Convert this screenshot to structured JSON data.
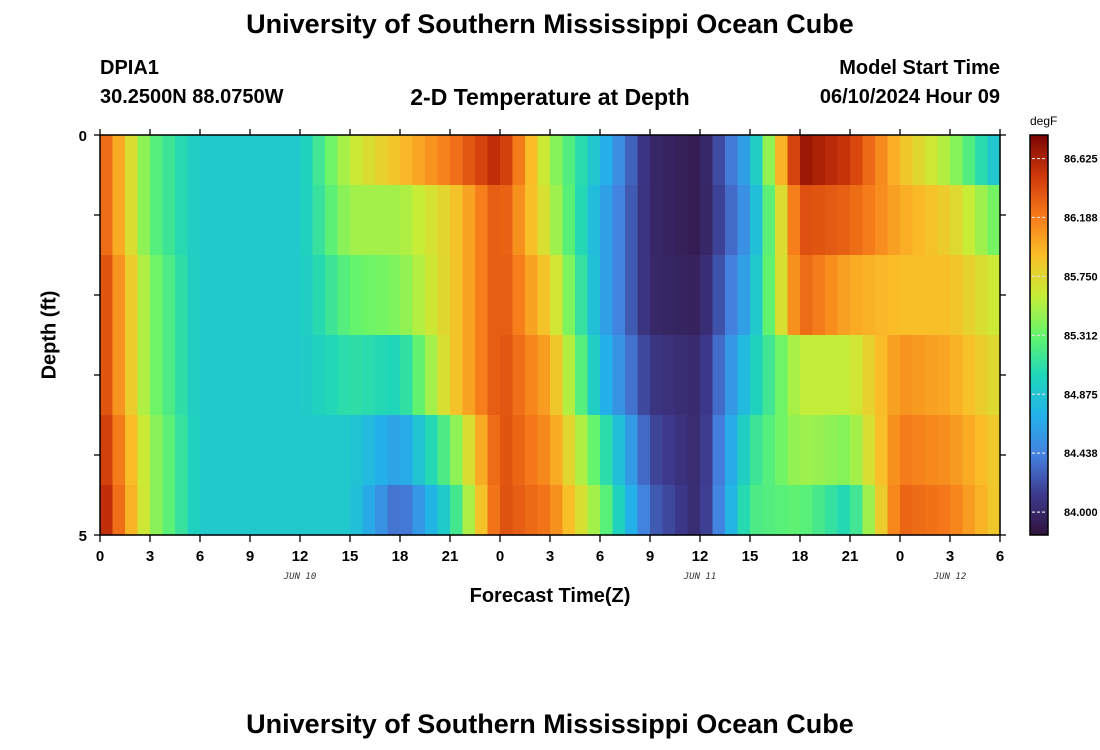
{
  "header": {
    "title": "University of Southern Mississippi Ocean Cube",
    "station_id": "DPIA1",
    "station_coords": "30.2500N  88.0750W",
    "model_label": "Model Start Time",
    "model_time": "06/10/2024 Hour 09",
    "subtitle": "2-D Temperature at Depth"
  },
  "footer": {
    "title": "University of Southern Mississippi Ocean Cube"
  },
  "chart_data": {
    "type": "heatmap",
    "title": "2-D Temperature at Depth",
    "xlabel": "Forecast Time(Z)",
    "ylabel": "Depth (ft)",
    "x_tick_labels": [
      "0",
      "3",
      "6",
      "9",
      "12",
      "15",
      "18",
      "21",
      "0",
      "3",
      "6",
      "9",
      "12",
      "15",
      "18",
      "21",
      "0",
      "3",
      "6"
    ],
    "x_date_labels": [
      {
        "hour_index": 12,
        "text": "JUN 10"
      },
      {
        "hour_index": 36,
        "text": "JUN 11"
      },
      {
        "hour_index": 51,
        "text": "JUN 12"
      }
    ],
    "x_range_hours": [
      0,
      54
    ],
    "y_tick_labels": [
      "0",
      "5"
    ],
    "ylim": [
      0,
      5
    ],
    "y_inverted": true,
    "depth_levels_ft": [
      0.25,
      1.0,
      2.0,
      3.0,
      4.0,
      4.75
    ],
    "colorbar": {
      "unit": "degF",
      "tick_labels": [
        "86.625",
        "86.188",
        "85.750",
        "85.312",
        "84.875",
        "84.438",
        "84.000"
      ],
      "range": [
        83.83,
        86.8
      ]
    },
    "time_hours": [
      0,
      3,
      6,
      9,
      12,
      15,
      18,
      21,
      24,
      27,
      30,
      33,
      36,
      39,
      42,
      45,
      48,
      51,
      54
    ],
    "values": [
      [
        86.4,
        85.3,
        84.9,
        84.9,
        84.9,
        85.6,
        85.9,
        86.2,
        86.6,
        85.5,
        84.8,
        84.0,
        83.9,
        84.7,
        86.7,
        86.5,
        85.9,
        85.5,
        84.8
      ],
      [
        86.4,
        85.3,
        84.9,
        84.9,
        84.9,
        85.5,
        85.5,
        85.8,
        86.4,
        85.6,
        84.7,
        84.0,
        83.9,
        84.6,
        86.4,
        86.3,
        86.0,
        85.8,
        85.3
      ],
      [
        86.5,
        85.4,
        84.9,
        84.9,
        84.9,
        85.3,
        85.4,
        85.8,
        86.4,
        85.8,
        84.7,
        84.0,
        83.95,
        84.7,
        86.3,
        86.0,
        85.9,
        85.9,
        85.6
      ],
      [
        86.5,
        85.4,
        84.9,
        84.9,
        84.9,
        85.1,
        85.0,
        85.8,
        86.4,
        86.0,
        84.8,
        84.1,
        84.0,
        84.9,
        85.6,
        85.6,
        86.1,
        86.0,
        85.7
      ],
      [
        86.6,
        85.5,
        84.9,
        84.9,
        84.9,
        84.9,
        84.6,
        85.3,
        86.4,
        86.1,
        85.2,
        84.2,
        84.0,
        85.1,
        85.5,
        85.4,
        86.2,
        86.1,
        85.8
      ],
      [
        86.7,
        85.5,
        84.9,
        84.9,
        84.9,
        84.9,
        84.3,
        85.0,
        86.4,
        86.2,
        85.4,
        84.3,
        84.0,
        85.2,
        85.3,
        85.0,
        86.3,
        86.2,
        85.8
      ]
    ]
  }
}
